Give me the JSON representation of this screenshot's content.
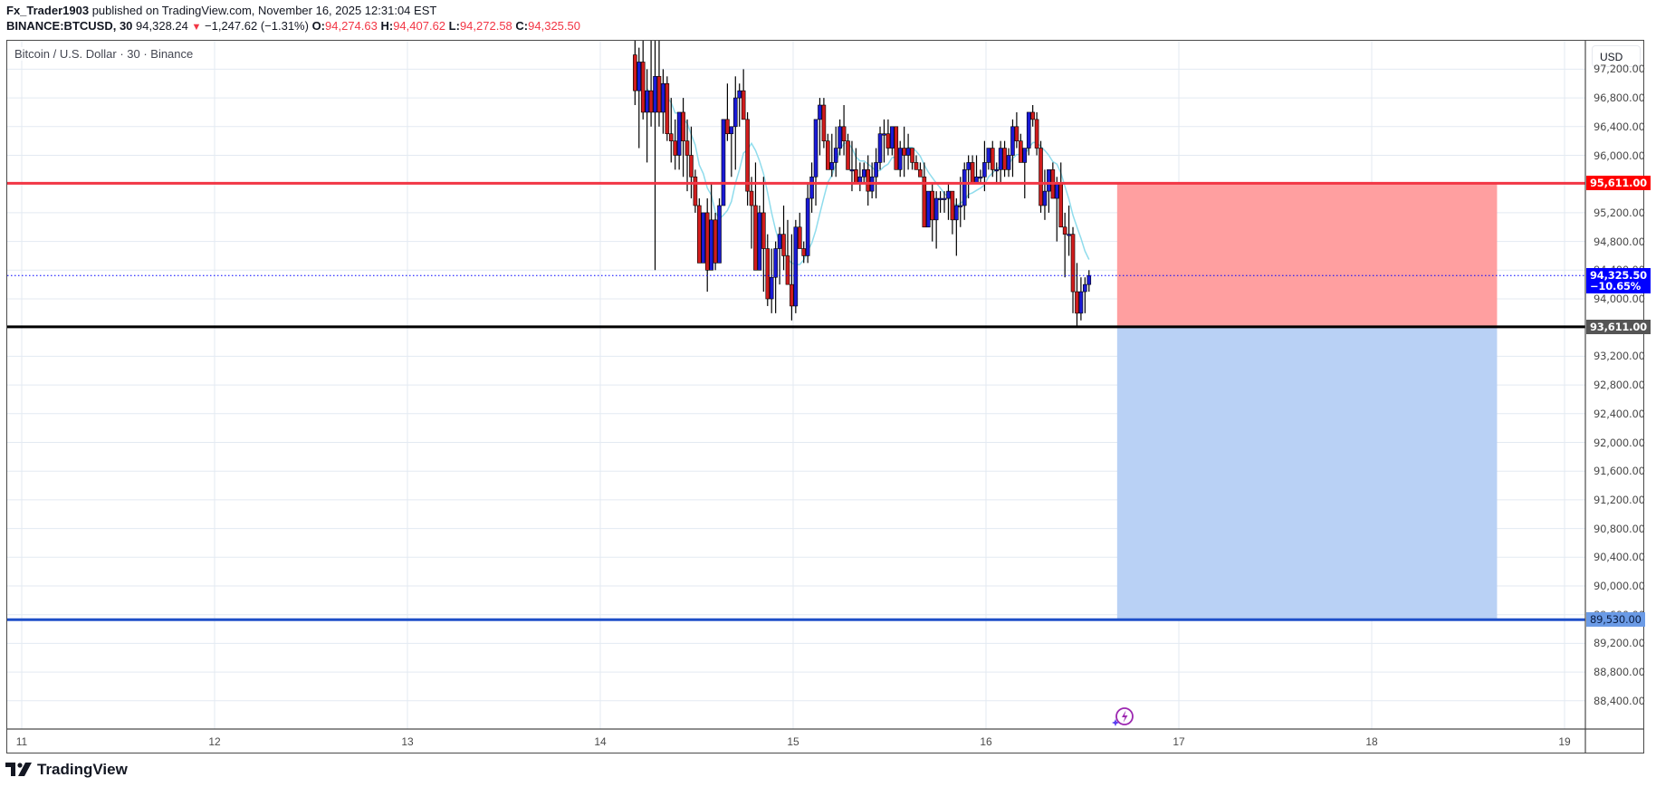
{
  "header": {
    "publisher": "Fx_Trader1903",
    "published_text": " published on TradingView.com, November 16, 2025 12:31:04 EST",
    "symbol": "BINANCE:BTCUSD, 30",
    "last_price": "94,328.24",
    "change_icon": "down-triangle-icon",
    "change_glyph": "▼",
    "change": "−1,247.62 (−1.31%)",
    "open_label": "O:",
    "open": "94,274.63",
    "high_label": "H:",
    "high": "94,407.62",
    "low_label": "L:",
    "low": "94,272.58",
    "close_label": "C:",
    "close": "94,325.50"
  },
  "legend": {
    "title": "Bitcoin / U.S. Dollar · 30 · Binance"
  },
  "price_axis": {
    "currency": "USD",
    "labels": [
      "97,200.00",
      "96,800.00",
      "96,400.00",
      "96,000.00",
      "95,600.00",
      "95,200.00",
      "94,800.00",
      "94,400.00",
      "94,000.00",
      "93,600.00",
      "93,200.00",
      "92,800.00",
      "92,400.00",
      "92,000.00",
      "91,600.00",
      "91,200.00",
      "90,800.00",
      "90,400.00",
      "90,000.00",
      "89,600.00",
      "89,200.00",
      "88,800.00",
      "88,400.00"
    ],
    "tags": {
      "stop": "95,611.00",
      "entry": "93,611.00",
      "target": "89,530.00",
      "current_price": "94,325.50",
      "current_change": "−10.65%"
    }
  },
  "time_axis": {
    "labels": [
      "11",
      "12",
      "13",
      "14",
      "15",
      "16",
      "17",
      "18",
      "19"
    ]
  },
  "colors": {
    "up": "#1a1ad6",
    "down": "#d01c1c",
    "wick": "#000000",
    "ma": "#8fdcec",
    "stop_line": "#f23645",
    "entry_line": "#000000",
    "target_line": "#1e4fc8",
    "stop_zone": "#ff9fa0",
    "target_zone": "#b9d1f5",
    "grid": "#e3eaf2",
    "current_price": "#0000ff"
  },
  "footer": {
    "brand": "TradingView"
  },
  "chart_data": {
    "type": "candlestick",
    "title": "Bitcoin / U.S. Dollar · 30 · Binance",
    "symbol": "BINANCE:BTCUSD",
    "interval": "30",
    "xlabel": "",
    "ylabel": "USD",
    "ylim": [
      88100,
      97500
    ],
    "x_ticks": [
      "11",
      "12",
      "13",
      "14",
      "15",
      "16",
      "17",
      "18",
      "19"
    ],
    "grid": true,
    "horizontal_lines": [
      {
        "name": "stop",
        "price": 95611.0,
        "color": "#f23645"
      },
      {
        "name": "entry",
        "price": 93611.0,
        "color": "#000000"
      },
      {
        "name": "target",
        "price": 89530.0,
        "color": "#1e4fc8"
      }
    ],
    "position_tool": {
      "type": "short",
      "entry": 93611.0,
      "stop": 95611.0,
      "target": 89530.0,
      "x_start_day": 16.68,
      "x_end_day": 18.65
    },
    "current_price": 94325.5,
    "candles_start_day": 14.18,
    "bars_per_day": 48,
    "candles": [
      [
        97400,
        97600,
        96700,
        96900
      ],
      [
        96900,
        97500,
        96100,
        97300
      ],
      [
        97300,
        97600,
        96500,
        96600
      ],
      [
        96600,
        97200,
        95900,
        96900
      ],
      [
        96900,
        97600,
        96400,
        96600
      ],
      [
        96600,
        97600,
        94400,
        97100
      ],
      [
        97100,
        97600,
        96400,
        96600
      ],
      [
        96600,
        97200,
        96300,
        97000
      ],
      [
        97000,
        97100,
        96200,
        96300
      ],
      [
        96300,
        96800,
        95900,
        96200
      ],
      [
        96200,
        96500,
        95800,
        96000
      ],
      [
        96000,
        96600,
        95800,
        96600
      ],
      [
        96600,
        96800,
        95700,
        96200
      ],
      [
        96200,
        96500,
        95500,
        96000
      ],
      [
        96000,
        96400,
        95400,
        95700
      ],
      [
        95700,
        95800,
        95200,
        95300
      ],
      [
        95300,
        95400,
        94700,
        94500
      ],
      [
        94500,
        95200,
        94700,
        95200
      ],
      [
        95200,
        95400,
        94100,
        94400
      ],
      [
        94400,
        95600,
        94500,
        95100
      ],
      [
        95100,
        95200,
        94400,
        94500
      ],
      [
        94500,
        95400,
        94700,
        95300
      ],
      [
        95300,
        95600,
        95600,
        96500
      ],
      [
        96500,
        97000,
        96200,
        96300
      ],
      [
        96300,
        96400,
        95700,
        96400
      ],
      [
        96400,
        97100,
        95800,
        96800
      ],
      [
        96800,
        97000,
        96400,
        96900
      ],
      [
        96900,
        97200,
        96700,
        96500
      ],
      [
        96500,
        96600,
        95300,
        95500
      ],
      [
        95500,
        95700,
        94700,
        95300
      ],
      [
        95300,
        95900,
        94900,
        94400
      ],
      [
        94400,
        95300,
        94400,
        95200
      ],
      [
        95200,
        95700,
        94100,
        94700
      ],
      [
        94700,
        94900,
        93900,
        94000
      ],
      [
        94000,
        94700,
        93800,
        94300
      ],
      [
        94300,
        94800,
        93800,
        94700
      ],
      [
        94700,
        95000,
        94200,
        94900
      ],
      [
        94900,
        95300,
        94400,
        94600
      ],
      [
        94600,
        95100,
        94400,
        94200
      ],
      [
        94200,
        94900,
        93700,
        93900
      ],
      [
        93900,
        95100,
        93800,
        95000
      ],
      [
        95000,
        95200,
        94700,
        94700
      ],
      [
        94700,
        94800,
        94500,
        94600
      ],
      [
        94600,
        95600,
        94500,
        95400
      ],
      [
        95400,
        95900,
        95200,
        95700
      ],
      [
        95700,
        96500,
        95300,
        96500
      ],
      [
        96500,
        96800,
        96000,
        96700
      ],
      [
        96700,
        96800,
        96100,
        96200
      ],
      [
        96200,
        96300,
        95800,
        95800
      ],
      [
        95800,
        96300,
        95700,
        95900
      ],
      [
        95900,
        96400,
        95700,
        96100
      ],
      [
        96100,
        96500,
        96000,
        96400
      ],
      [
        96400,
        96700,
        96000,
        96200
      ],
      [
        96200,
        96300,
        95800,
        95800
      ],
      [
        95800,
        96200,
        95500,
        95800
      ],
      [
        95800,
        96100,
        95600,
        95600
      ],
      [
        95600,
        95900,
        95500,
        95700
      ],
      [
        95700,
        95900,
        95600,
        95800
      ],
      [
        95800,
        96000,
        95300,
        95500
      ],
      [
        95500,
        95900,
        95400,
        95700
      ],
      [
        95700,
        96100,
        95400,
        95900
      ],
      [
        95900,
        96400,
        95800,
        96300
      ],
      [
        96300,
        96500,
        95900,
        96300
      ],
      [
        96300,
        96500,
        96000,
        96100
      ],
      [
        96100,
        96400,
        96000,
        96400
      ],
      [
        96400,
        96400,
        95800,
        95800
      ],
      [
        95800,
        96200,
        95700,
        96100
      ],
      [
        96100,
        96400,
        95700,
        96000
      ],
      [
        96000,
        96300,
        95800,
        96100
      ],
      [
        96100,
        96100,
        95800,
        95900
      ],
      [
        95900,
        96000,
        95800,
        95800
      ],
      [
        95800,
        95900,
        95700,
        95700
      ],
      [
        95700,
        95900,
        95400,
        95000
      ],
      [
        95000,
        95500,
        95000,
        95500
      ],
      [
        95500,
        95600,
        94800,
        95100
      ],
      [
        95100,
        95500,
        94700,
        95400
      ],
      [
        95400,
        95500,
        95200,
        95400
      ],
      [
        95400,
        95500,
        95200,
        95400
      ],
      [
        95400,
        95600,
        95100,
        95500
      ],
      [
        95500,
        95500,
        94900,
        95100
      ],
      [
        95100,
        95400,
        94600,
        95300
      ],
      [
        95300,
        95700,
        95000,
        95300
      ],
      [
        95300,
        95900,
        95100,
        95800
      ],
      [
        95800,
        96000,
        95400,
        95900
      ],
      [
        95900,
        96000,
        95700,
        95600
      ],
      [
        95600,
        96000,
        95600,
        95700
      ],
      [
        95700,
        95800,
        95600,
        95700
      ],
      [
        95700,
        96200,
        95500,
        95900
      ],
      [
        95900,
        96100,
        95800,
        96100
      ],
      [
        96100,
        96200,
        95700,
        95800
      ],
      [
        95800,
        95900,
        95600,
        95800
      ],
      [
        95800,
        96200,
        95600,
        96100
      ],
      [
        96100,
        96200,
        95700,
        95800
      ],
      [
        95800,
        96100,
        95700,
        96000
      ],
      [
        96000,
        96500,
        95700,
        96400
      ],
      [
        96400,
        96600,
        96100,
        96200
      ],
      [
        96200,
        96300,
        95900,
        95900
      ],
      [
        95900,
        96100,
        95400,
        96100
      ],
      [
        96100,
        96500,
        96000,
        96600
      ],
      [
        96600,
        96700,
        96400,
        96500
      ],
      [
        96500,
        96600,
        96000,
        96100
      ],
      [
        96100,
        96200,
        95200,
        95300
      ],
      [
        95300,
        95800,
        95100,
        95500
      ],
      [
        95500,
        95800,
        95200,
        95800
      ],
      [
        95800,
        95900,
        95400,
        95400
      ],
      [
        95400,
        95700,
        94800,
        95600
      ],
      [
        95600,
        95900,
        95200,
        95000
      ],
      [
        95000,
        95200,
        94300,
        94900
      ],
      [
        94900,
        95300,
        94600,
        94900
      ],
      [
        94900,
        95000,
        93800,
        94100
      ],
      [
        94100,
        94500,
        93600,
        93800
      ],
      [
        93800,
        94300,
        93700,
        94100
      ],
      [
        94100,
        94300,
        93800,
        94200
      ],
      [
        94200,
        94400,
        94100,
        94325
      ]
    ]
  }
}
